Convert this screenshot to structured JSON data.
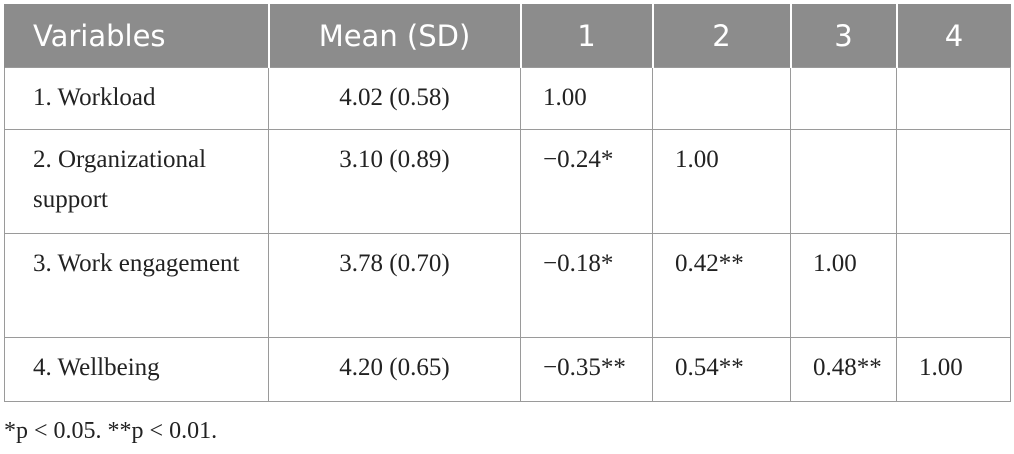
{
  "table": {
    "header": [
      "Variables",
      "Mean (SD)",
      "1",
      "2",
      "3",
      "4"
    ],
    "rows": [
      {
        "variable": "1. Workload",
        "mean": "4.02 (0.58)",
        "correlations": [
          "1.00"
        ]
      },
      {
        "variable": "2. Organizational support",
        "mean": "3.10 (0.89)",
        "correlations": [
          "−0.24*",
          "1.00"
        ]
      },
      {
        "variable": "3. Work engagement",
        "mean": "3.78 (0.70)",
        "correlations": [
          "−0.18*",
          "0.42**",
          "1.00"
        ]
      },
      {
        "variable": "4. Wellbeing",
        "mean": "4.20 (0.65)",
        "correlations": [
          "−0.35**",
          "0.54**",
          "0.48**",
          "1.00"
        ]
      }
    ]
  },
  "footnote": "*p < 0.05. **p < 0.01."
}
